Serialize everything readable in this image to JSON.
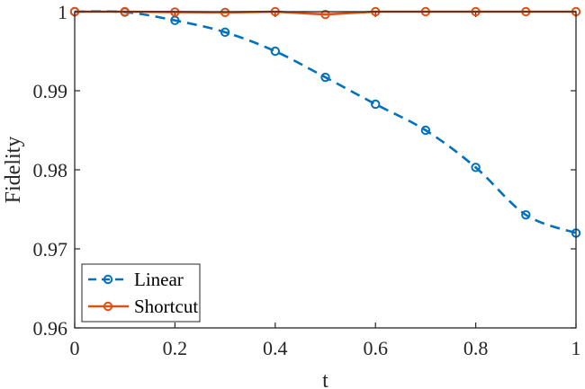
{
  "chart_data": {
    "type": "line",
    "xlabel": "t",
    "ylabel": "Fidelity",
    "xlim": [
      0,
      1
    ],
    "ylim": [
      0.96,
      1.0
    ],
    "xticks": [
      "0",
      "0.2",
      "0.4",
      "0.6",
      "0.8",
      "1"
    ],
    "yticks": [
      "0.96",
      "0.97",
      "0.98",
      "0.99",
      "1"
    ],
    "grid": false,
    "legend_position": "bottom-left",
    "series": [
      {
        "name": "Linear",
        "color": "#0072BD",
        "line_style": "dashed",
        "marker": "circle",
        "x": [
          0,
          0.1,
          0.2,
          0.3,
          0.4,
          0.5,
          0.6,
          0.7,
          0.8,
          0.9,
          1.0
        ],
        "y": [
          1.0,
          0.99995,
          0.9989,
          0.9974,
          0.995,
          0.9917,
          0.9883,
          0.985,
          0.9803,
          0.9743,
          0.972
        ]
      },
      {
        "name": "Shortcut",
        "color": "#D95319",
        "line_style": "solid",
        "marker": "circle",
        "x": [
          0,
          0.1,
          0.2,
          0.3,
          0.4,
          0.5,
          0.6,
          0.7,
          0.8,
          0.9,
          1.0
        ],
        "y": [
          1.0,
          1.0,
          0.99995,
          0.9999,
          1.0,
          0.99965,
          1.0,
          1.0,
          1.0,
          1.0,
          1.0
        ]
      }
    ]
  }
}
